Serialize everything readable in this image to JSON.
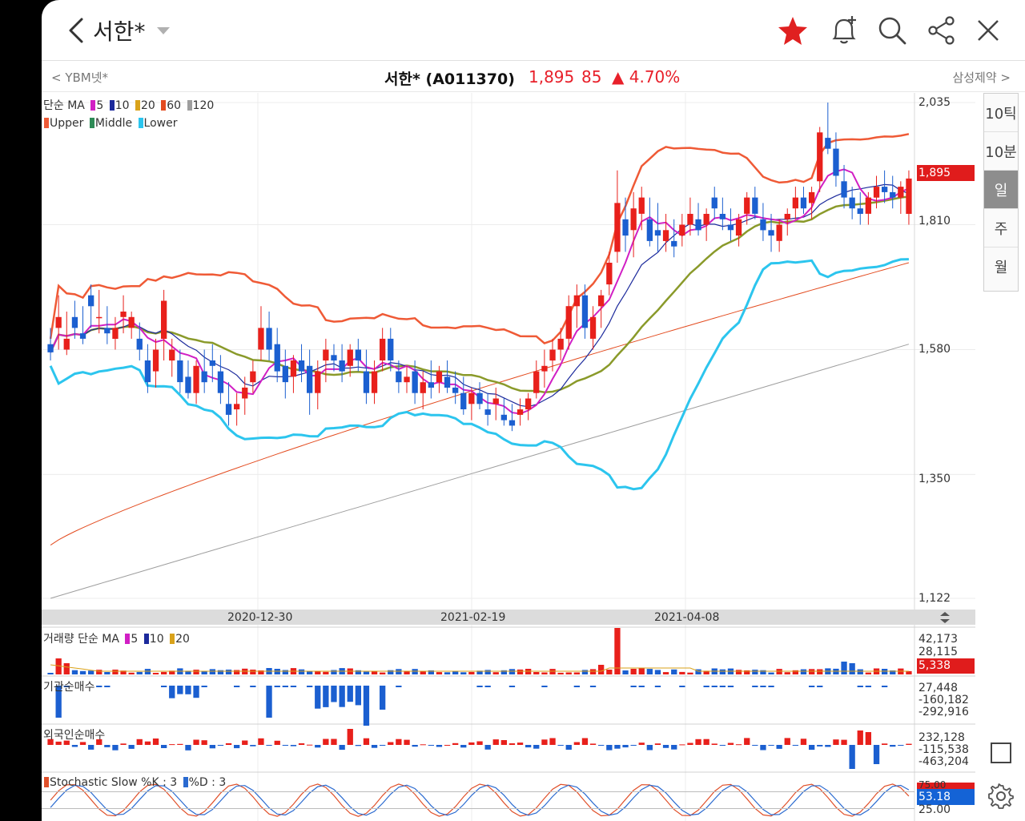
{
  "header": {
    "title": "서한*",
    "icons": [
      "back-arrow-icon",
      "dropdown-caret-icon",
      "star-icon",
      "bell-plus-icon",
      "search-icon",
      "share-icon",
      "close-icon"
    ],
    "favorite_color": "#e02020"
  },
  "subbar": {
    "prev": "< YBM넷*",
    "name": "서한* (A011370)",
    "price": "1,895",
    "change": "85",
    "rate": "▲ 4.70%",
    "next": "삼성제약 >"
  },
  "periods": [
    "10틱",
    "10분",
    "일",
    "주",
    "월"
  ],
  "active_period": "일",
  "legends": {
    "ma_prefix": "단순 MA",
    "ma_periods": [
      "5",
      "10",
      "20",
      "60",
      "120"
    ],
    "bb": [
      "Upper",
      "Middle",
      "Lower"
    ],
    "volume_prefix": "거래량 단순 MA",
    "volume_ma": [
      "5",
      "10",
      "20"
    ],
    "inst": "기관순매수",
    "foreign": "외국인순매수",
    "stoch_k": "Stochastic Slow %K : 3",
    "stoch_d": "%D : 3"
  },
  "colors": {
    "up": "#e8201b",
    "down": "#1b5fd0",
    "ma5": "#d11fc4",
    "ma10": "#1c2a9c",
    "ma20": "#d9a21a",
    "ma60": "#e34b1f",
    "ma120": "#9e9e9e",
    "upper": "#ef5a36",
    "middle": "#2e8b57",
    "lower": "#2cc5ee",
    "middle_line": "#8a9a2a",
    "stoch_k": "#e0502a",
    "stoch_d": "#2a6ad0"
  },
  "price_axis": [
    "2,035",
    "1,810",
    "1,580",
    "1,350",
    "1,122"
  ],
  "current_price_tag": "1,895",
  "date_labels": [
    "2020-12-30",
    "2021-02-19",
    "2021-04-08"
  ],
  "volume_axis": [
    "42,173",
    "28,115",
    "5,338"
  ],
  "inst_axis": [
    "27,448",
    "-160,182",
    "-292,916"
  ],
  "foreign_axis": [
    "232,128",
    "-115,538",
    "-463,204"
  ],
  "stoch_axis": [
    "75.00",
    "53.18",
    "25.00"
  ],
  "stoch_tag": "53.18",
  "chart_data": {
    "type": "candlestick",
    "title": "",
    "ylim": [
      1122,
      2035
    ],
    "current_price": 1895,
    "candles": [
      [
        1590,
        1620,
        1560,
        1575
      ],
      [
        1620,
        1680,
        1580,
        1640
      ],
      [
        1580,
        1650,
        1570,
        1600
      ],
      [
        1640,
        1670,
        1600,
        1620
      ],
      [
        1610,
        1660,
        1590,
        1600
      ],
      [
        1680,
        1700,
        1620,
        1660
      ],
      [
        1640,
        1690,
        1610,
        1640
      ],
      [
        1620,
        1660,
        1590,
        1610
      ],
      [
        1600,
        1640,
        1580,
        1620
      ],
      [
        1640,
        1680,
        1610,
        1650
      ],
      [
        1620,
        1650,
        1600,
        1640
      ],
      [
        1600,
        1630,
        1560,
        1580
      ],
      [
        1560,
        1590,
        1500,
        1520
      ],
      [
        1540,
        1600,
        1510,
        1580
      ],
      [
        1600,
        1690,
        1560,
        1670
      ],
      [
        1560,
        1600,
        1530,
        1580
      ],
      [
        1560,
        1580,
        1500,
        1520
      ],
      [
        1530,
        1560,
        1490,
        1500
      ],
      [
        1500,
        1560,
        1480,
        1550
      ],
      [
        1540,
        1580,
        1500,
        1520
      ],
      [
        1560,
        1590,
        1520,
        1550
      ],
      [
        1540,
        1570,
        1480,
        1500
      ],
      [
        1480,
        1520,
        1440,
        1460
      ],
      [
        1470,
        1500,
        1440,
        1480
      ],
      [
        1490,
        1530,
        1460,
        1510
      ],
      [
        1520,
        1560,
        1500,
        1540
      ],
      [
        1580,
        1660,
        1560,
        1620
      ],
      [
        1620,
        1650,
        1560,
        1580
      ],
      [
        1590,
        1620,
        1520,
        1540
      ],
      [
        1550,
        1580,
        1490,
        1520
      ],
      [
        1530,
        1570,
        1500,
        1560
      ],
      [
        1560,
        1590,
        1520,
        1540
      ],
      [
        1550,
        1580,
        1460,
        1500
      ],
      [
        1500,
        1560,
        1470,
        1540
      ],
      [
        1560,
        1600,
        1520,
        1580
      ],
      [
        1570,
        1590,
        1540,
        1560
      ],
      [
        1560,
        1590,
        1520,
        1540
      ],
      [
        1550,
        1590,
        1530,
        1580
      ],
      [
        1580,
        1600,
        1540,
        1560
      ],
      [
        1540,
        1580,
        1480,
        1500
      ],
      [
        1500,
        1560,
        1480,
        1540
      ],
      [
        1560,
        1620,
        1540,
        1600
      ],
      [
        1600,
        1620,
        1540,
        1560
      ],
      [
        1540,
        1560,
        1500,
        1520
      ],
      [
        1520,
        1550,
        1500,
        1530
      ],
      [
        1540,
        1560,
        1480,
        1500
      ],
      [
        1500,
        1540,
        1470,
        1520
      ],
      [
        1520,
        1560,
        1490,
        1510
      ],
      [
        1520,
        1550,
        1500,
        1540
      ],
      [
        1530,
        1560,
        1500,
        1510
      ],
      [
        1510,
        1540,
        1480,
        1500
      ],
      [
        1500,
        1530,
        1460,
        1470
      ],
      [
        1480,
        1510,
        1450,
        1500
      ],
      [
        1500,
        1520,
        1470,
        1480
      ],
      [
        1470,
        1500,
        1440,
        1460
      ],
      [
        1480,
        1510,
        1450,
        1490
      ],
      [
        1460,
        1490,
        1440,
        1450
      ],
      [
        1450,
        1480,
        1430,
        1440
      ],
      [
        1460,
        1490,
        1440,
        1470
      ],
      [
        1470,
        1500,
        1450,
        1490
      ],
      [
        1500,
        1560,
        1490,
        1540
      ],
      [
        1540,
        1580,
        1510,
        1550
      ],
      [
        1560,
        1600,
        1540,
        1580
      ],
      [
        1580,
        1620,
        1560,
        1600
      ],
      [
        1600,
        1680,
        1580,
        1660
      ],
      [
        1660,
        1700,
        1620,
        1680
      ],
      [
        1680,
        1700,
        1600,
        1620
      ],
      [
        1600,
        1660,
        1580,
        1640
      ],
      [
        1660,
        1690,
        1620,
        1680
      ],
      [
        1700,
        1760,
        1680,
        1740
      ],
      [
        1760,
        1910,
        1740,
        1850
      ],
      [
        1820,
        1860,
        1760,
        1790
      ],
      [
        1800,
        1870,
        1750,
        1840
      ],
      [
        1830,
        1880,
        1800,
        1860
      ],
      [
        1820,
        1860,
        1770,
        1780
      ],
      [
        1800,
        1850,
        1760,
        1790
      ],
      [
        1780,
        1830,
        1760,
        1800
      ],
      [
        1780,
        1820,
        1750,
        1770
      ],
      [
        1790,
        1830,
        1770,
        1810
      ],
      [
        1810,
        1860,
        1790,
        1830
      ],
      [
        1820,
        1850,
        1790,
        1800
      ],
      [
        1810,
        1840,
        1780,
        1830
      ],
      [
        1860,
        1880,
        1820,
        1840
      ],
      [
        1830,
        1860,
        1800,
        1820
      ],
      [
        1810,
        1840,
        1780,
        1800
      ],
      [
        1790,
        1830,
        1770,
        1820
      ],
      [
        1830,
        1870,
        1810,
        1860
      ],
      [
        1860,
        1880,
        1820,
        1830
      ],
      [
        1820,
        1850,
        1780,
        1800
      ],
      [
        1800,
        1830,
        1760,
        1790
      ],
      [
        1780,
        1820,
        1760,
        1810
      ],
      [
        1820,
        1840,
        1790,
        1830
      ],
      [
        1840,
        1880,
        1820,
        1860
      ],
      [
        1860,
        1880,
        1830,
        1840
      ],
      [
        1850,
        1880,
        1820,
        1870
      ],
      [
        1890,
        1990,
        1870,
        1980
      ],
      [
        1970,
        2035,
        1940,
        1950
      ],
      [
        1950,
        1980,
        1880,
        1900
      ],
      [
        1890,
        1920,
        1840,
        1860
      ],
      [
        1860,
        1880,
        1820,
        1840
      ],
      [
        1840,
        1870,
        1810,
        1830
      ],
      [
        1830,
        1870,
        1810,
        1860
      ],
      [
        1860,
        1900,
        1840,
        1880
      ],
      [
        1880,
        1910,
        1850,
        1870
      ],
      [
        1870,
        1900,
        1840,
        1860
      ],
      [
        1860,
        1890,
        1830,
        1880
      ],
      [
        1830,
        1910,
        1810,
        1895
      ]
    ]
  }
}
